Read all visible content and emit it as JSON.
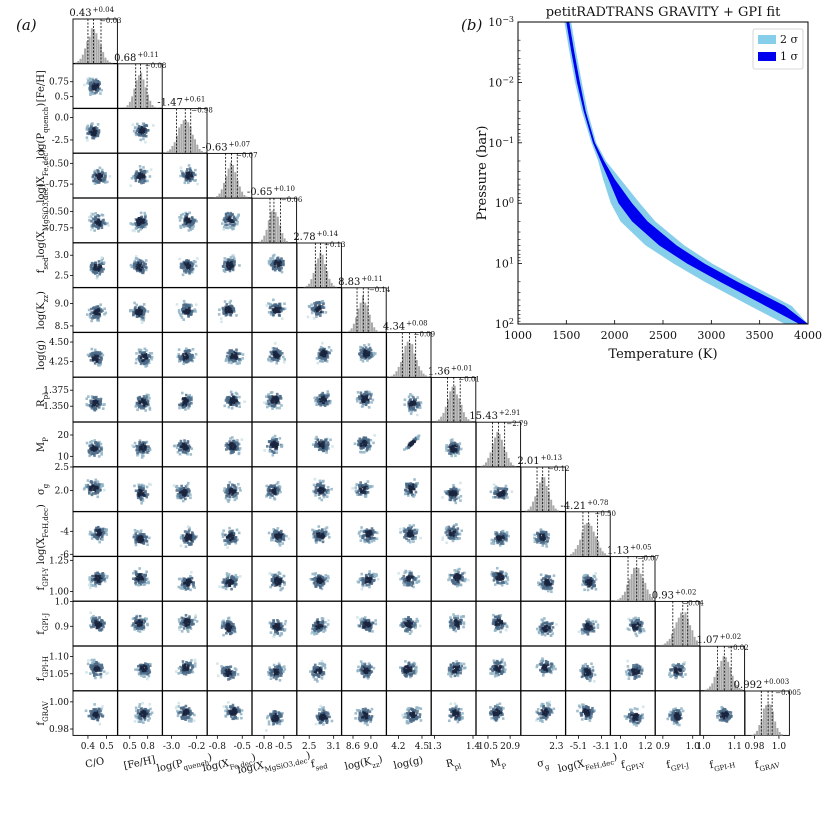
{
  "panels": {
    "a": "(a)",
    "b": "(b)"
  },
  "chart_data": [
    {
      "type": "corner",
      "parameters": [
        {
          "label": "C/O",
          "median": "0.43",
          "plus": "+0.04",
          "minus": "−0.03",
          "range": [
            0.32,
            0.56
          ],
          "ticks": [
            "0.4",
            "0.5"
          ],
          "ytick_vals": [],
          "xtick_vals": [
            0.4,
            0.5
          ],
          "m": 0.43,
          "lo": 0.4,
          "hi": 0.47
        },
        {
          "label": "[Fe/H]",
          "median": "0.68",
          "plus": "+0.11",
          "minus": "−0.08",
          "range": [
            0.3,
            1.05
          ],
          "ticks": [
            "0.5",
            "0.75"
          ],
          "ytick_vals": [
            0.5,
            0.75
          ],
          "xtick_vals_labels": [
            "0.5",
            "0.8"
          ],
          "xtick_vals": [
            0.5,
            0.8
          ],
          "m": 0.68,
          "lo": 0.6,
          "hi": 0.79
        },
        {
          "label": "log(P_quench)",
          "median": "-1.47",
          "plus": "+0.61",
          "minus": "−0.98",
          "range": [
            -4.0,
            1.0
          ],
          "ticks": [
            "-2.5",
            "0.0"
          ],
          "ytick_vals": [
            -2.5,
            0.0
          ],
          "xtick_vals_labels": [
            "-3.0",
            "-0.2"
          ],
          "xtick_vals": [
            -3.0,
            -0.2
          ],
          "m": -1.47,
          "lo": -2.45,
          "hi": -0.86
        },
        {
          "label": "log(X_Fe,dec)",
          "median": "-0.63",
          "plus": "+0.07",
          "minus": "−0.07",
          "range": [
            -0.92,
            -0.38
          ],
          "ticks": [
            "-0.75",
            "-0.50"
          ],
          "ytick_vals": [
            -0.75,
            -0.5
          ],
          "xtick_vals_labels": [
            "-0.8",
            "-0.5"
          ],
          "xtick_vals": [
            -0.8,
            -0.5
          ],
          "m": -0.63,
          "lo": -0.7,
          "hi": -0.56
        },
        {
          "label": "log(X_MgSiO3,dec)",
          "median": "-0.65",
          "plus": "+0.10",
          "minus": "−0.06",
          "range": [
            -0.98,
            -0.3
          ],
          "ticks": [
            "-0.75",
            "-0.50"
          ],
          "ytick_vals": [
            -0.75,
            -0.5
          ],
          "xtick_vals_labels": [
            "-0.8",
            "-0.5"
          ],
          "xtick_vals": [
            -0.8,
            -0.5
          ],
          "m": -0.65,
          "lo": -0.71,
          "hi": -0.55
        },
        {
          "label": "f_sed",
          "median": "2.78",
          "plus": "+0.14",
          "minus": "−0.13",
          "range": [
            2.2,
            3.3
          ],
          "ticks": [
            "2.5",
            "3.0"
          ],
          "ytick_vals": [
            2.5,
            3.0
          ],
          "xtick_vals_labels": [
            "2.5",
            "3.1"
          ],
          "xtick_vals": [
            2.5,
            3.1
          ],
          "m": 2.78,
          "lo": 2.65,
          "hi": 2.92
        },
        {
          "label": "log(K_zz)",
          "median": "8.83",
          "plus": "+0.11",
          "minus": "−0.14",
          "range": [
            8.35,
            9.35
          ],
          "ticks": [
            "8.5",
            "9.0"
          ],
          "ytick_vals": [
            8.5,
            9.0
          ],
          "xtick_vals_labels": [
            "8.6",
            "9.0"
          ],
          "xtick_vals": [
            8.6,
            9.0
          ],
          "m": 8.83,
          "lo": 8.69,
          "hi": 8.94
        },
        {
          "label": "log(g)",
          "median": "4.34",
          "plus": "+0.08",
          "minus": "−0.09",
          "range": [
            4.05,
            4.62
          ],
          "ticks": [
            "4.25",
            "4.50"
          ],
          "ytick_vals": [
            4.25,
            4.5
          ],
          "xtick_vals_labels": [
            "4.2",
            "4.5"
          ],
          "xtick_vals": [
            4.2,
            4.5
          ],
          "m": 4.34,
          "lo": 4.25,
          "hi": 4.42
        },
        {
          "label": "R_pl",
          "median": "1.36",
          "plus": "+0.01",
          "minus": "−0.01",
          "range": [
            1.325,
            1.395
          ],
          "ticks": [
            "1.350",
            "1.375"
          ],
          "ytick_vals": [
            1.35,
            1.375
          ],
          "xtick_vals_labels": [
            "1.3",
            "1.4"
          ],
          "xtick_vals": [
            1.33,
            1.39
          ],
          "m": 1.36,
          "lo": 1.35,
          "hi": 1.37
        },
        {
          "label": "M_P",
          "median": "15.43",
          "plus": "+2.91",
          "minus": "−2.79",
          "range": [
            5.0,
            26.0
          ],
          "ticks": [
            "10",
            "20"
          ],
          "ytick_vals": [
            10,
            20
          ],
          "xtick_vals_labels": [
            "10.5",
            "20.9"
          ],
          "xtick_vals": [
            10.5,
            20.9
          ],
          "m": 15.43,
          "lo": 12.64,
          "hi": 18.34
        },
        {
          "label": "σ_g",
          "median": "2.01",
          "plus": "+0.13",
          "minus": "−0.12",
          "range": [
            1.55,
            2.5
          ],
          "ticks": [
            "2.0",
            "2.5"
          ],
          "ytick_vals": [
            2.0,
            2.5
          ],
          "xtick_vals_labels": [
            "2.3"
          ],
          "xtick_vals": [
            2.3
          ],
          "m": 2.01,
          "lo": 1.89,
          "hi": 2.14
        },
        {
          "label": "log(X_FeH,dec)",
          "median": "-4.21",
          "plus": "+0.78",
          "minus": "−0.50",
          "range": [
            -6.2,
            -2.3
          ],
          "ticks": [
            "-6",
            "-4"
          ],
          "ytick_vals": [
            -6,
            -4
          ],
          "xtick_vals_labels": [
            "-5.1",
            "-3.1"
          ],
          "xtick_vals": [
            -5.1,
            -3.1
          ],
          "m": -4.21,
          "lo": -4.71,
          "hi": -3.43
        },
        {
          "label": "f_GPI-Y",
          "median": "1.13",
          "plus": "+0.05",
          "minus": "−0.07",
          "range": [
            0.92,
            1.28
          ],
          "ticks": [
            "1.00",
            "1.25"
          ],
          "ytick_vals": [
            1.0,
            1.25
          ],
          "xtick_vals_labels": [
            "1.0",
            "1.2"
          ],
          "xtick_vals": [
            1.0,
            1.2
          ],
          "m": 1.13,
          "lo": 1.06,
          "hi": 1.18
        },
        {
          "label": "f_GPI-J",
          "median": "0.93",
          "plus": "+0.02",
          "minus": "−0.04",
          "range": [
            0.82,
            1.0
          ],
          "ticks": [
            "0.9",
            "1.0"
          ],
          "ytick_vals": [
            0.9,
            1.0
          ],
          "xtick_vals_labels": [
            "0.9",
            "1.0"
          ],
          "xtick_vals": [
            0.85,
            0.97
          ],
          "m": 0.93,
          "lo": 0.89,
          "hi": 0.95
        },
        {
          "label": "f_GPI-H",
          "median": "1.07",
          "plus": "+0.02",
          "minus": "−0.02",
          "range": [
            1.0,
            1.13
          ],
          "ticks": [
            "1.05",
            "1.10"
          ],
          "ytick_vals": [
            1.05,
            1.1
          ],
          "xtick_vals_labels": [
            "1.0",
            "1.1"
          ],
          "xtick_vals": [
            1.01,
            1.1
          ],
          "m": 1.07,
          "lo": 1.05,
          "hi": 1.09
        },
        {
          "label": "f_GRAV",
          "median": "0.992",
          "plus": "+0.003",
          "minus": "−0.005",
          "range": [
            0.975,
            1.008
          ],
          "ticks": [
            "0.98",
            "1.00"
          ],
          "ytick_vals": [
            0.98,
            1.0
          ],
          "xtick_vals_labels": [
            "0.98",
            "1.0"
          ],
          "xtick_vals": [
            0.982,
            1.0
          ],
          "m": 0.992,
          "lo": 0.987,
          "hi": 0.995
        }
      ]
    },
    {
      "type": "area",
      "title": "petitRADTRANS GRAVITY + GPI fit",
      "xlabel": "Temperature (K)",
      "ylabel": "Pressure (bar)",
      "xlim": [
        1000,
        4000
      ],
      "ylim": [
        100,
        0.001
      ],
      "yscale": "log",
      "xticks": [
        "1000",
        "1500",
        "2000",
        "2500",
        "3000",
        "3500",
        "4000"
      ],
      "yticks": [
        {
          "base": "10",
          "exp": "−3",
          "v": 0.001
        },
        {
          "base": "10",
          "exp": "−2",
          "v": 0.01
        },
        {
          "base": "10",
          "exp": "−1",
          "v": 0.1
        },
        {
          "base": "10",
          "exp": "0",
          "v": 1
        },
        {
          "base": "10",
          "exp": "1",
          "v": 10
        },
        {
          "base": "10",
          "exp": "2",
          "v": 100
        }
      ],
      "legend_position": "top-right",
      "legend": [
        {
          "label": "2 σ",
          "color": "#87ceeb"
        },
        {
          "label": "1 σ",
          "color": "#0000ee"
        }
      ],
      "profile": {
        "pressure": [
          0.001,
          0.003,
          0.01,
          0.03,
          0.1,
          0.2,
          0.4,
          1,
          2,
          5,
          10,
          20,
          50,
          100
        ],
        "t_2sigma_lo": [
          1480,
          1530,
          1590,
          1660,
          1760,
          1830,
          1880,
          1960,
          2060,
          2320,
          2610,
          2930,
          3400,
          3760
        ],
        "t_1sigma_lo": [
          1500,
          1550,
          1610,
          1680,
          1775,
          1855,
          1935,
          2040,
          2180,
          2460,
          2750,
          3090,
          3560,
          3910
        ],
        "t_1sigma_hi": [
          1530,
          1580,
          1640,
          1700,
          1795,
          1890,
          2000,
          2180,
          2340,
          2640,
          2930,
          3270,
          3760,
          4000
        ],
        "t_2sigma_hi": [
          1550,
          1600,
          1660,
          1720,
          1810,
          1910,
          2060,
          2260,
          2420,
          2720,
          3010,
          3350,
          3830,
          4000
        ]
      }
    }
  ]
}
